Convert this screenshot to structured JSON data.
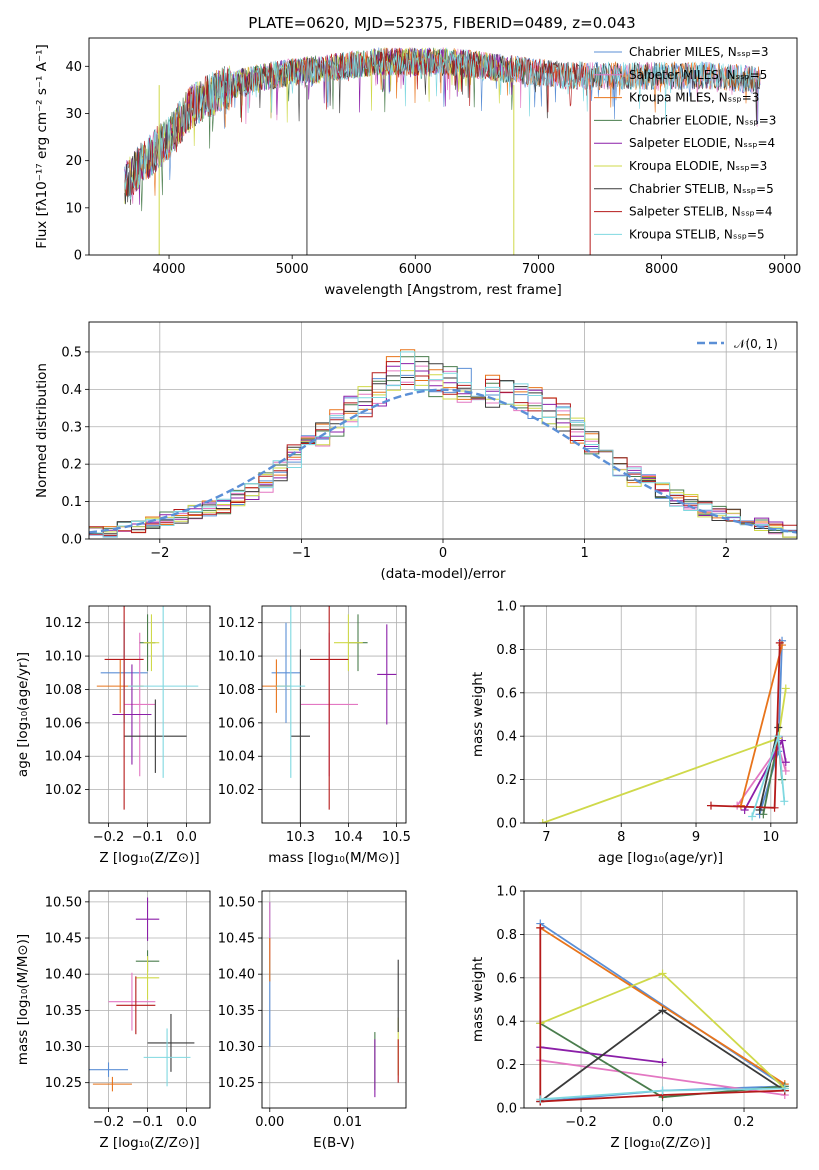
{
  "colors": [
    "#5b8fd6",
    "#e377c2",
    "#e8741b",
    "#4a7d4d",
    "#8b1fa8",
    "#cfd94a",
    "#3a3a3a",
    "#b51a1a",
    "#7fd8e0"
  ],
  "chart_data": [
    {
      "id": "spectrum",
      "type": "line",
      "title": "PLATE=0620, MJD=52375, FIBERID=0489, z=0.043",
      "xlabel": "wavelength [Angstrom, rest frame]",
      "ylabel": "Flux [fλ10⁻¹⁷ erg cm⁻² s⁻¹ A⁻¹]",
      "xlim": [
        3350,
        9100
      ],
      "ylim": [
        0,
        46
      ],
      "xticks": [
        4000,
        5000,
        6000,
        7000,
        8000,
        9000
      ],
      "yticks": [
        0,
        10,
        20,
        30,
        40
      ],
      "grid": false,
      "legend_position": "top-right",
      "series": [
        {
          "name": "Chabrier MILES, N_SSP=3",
          "x": [
            3640,
            3800,
            4000,
            4200,
            4500,
            4800,
            5100,
            5400,
            5700,
            6000,
            6300,
            6600,
            6900,
            7200,
            7500,
            7800,
            8100,
            8400,
            8800
          ],
          "y": [
            15,
            20,
            25,
            32,
            36,
            38,
            39,
            40,
            41,
            41,
            41,
            40,
            39,
            38,
            38,
            38,
            38,
            38,
            37
          ]
        },
        {
          "name": "Salpeter MILES, N_SSP=5",
          "x": [
            3640,
            3800,
            4000,
            4200,
            4500,
            4800,
            5100,
            5400,
            5700,
            6000,
            6300,
            6600,
            6900,
            7200,
            7500,
            7800,
            8100,
            8400,
            8800
          ],
          "y": [
            15,
            20,
            25,
            32,
            36,
            38,
            39,
            40,
            41,
            41,
            41,
            40,
            39,
            38,
            38,
            38,
            38,
            38,
            37
          ]
        },
        {
          "name": "Kroupa MILES, N_SSP=3",
          "x": [
            3640,
            3800,
            4000,
            4200,
            4500,
            4800,
            5100,
            5400,
            5700,
            6000,
            6300,
            6600,
            6900,
            7200,
            7500,
            7800,
            8100,
            8400,
            8800
          ],
          "y": [
            15,
            20,
            25,
            32,
            36,
            38,
            39,
            40,
            41,
            41,
            41,
            40,
            39,
            38,
            38,
            38,
            38,
            38,
            37
          ]
        },
        {
          "name": "Chabrier ELODIE, N_SSP=3",
          "x": [
            3640,
            3800,
            4000,
            4200,
            4500,
            4800,
            5100,
            5400,
            5700,
            6000,
            6300,
            6600,
            6900
          ],
          "y": [
            15,
            20,
            25,
            32,
            36,
            38,
            39,
            40,
            41,
            41,
            41,
            40,
            39
          ]
        },
        {
          "name": "Salpeter ELODIE, N_SSP=4",
          "x": [
            3640,
            3800,
            4000,
            4200,
            4500,
            4800,
            5100,
            5400,
            5700,
            6000,
            6300,
            6600,
            6800
          ],
          "y": [
            15,
            20,
            25,
            32,
            36,
            38,
            39,
            40,
            41,
            41,
            41,
            40,
            39
          ]
        },
        {
          "name": "Kroupa ELODIE, N_SSP=3",
          "x": [
            3640,
            3800,
            4000,
            4200,
            4500,
            4800,
            5100,
            5400,
            5700,
            6000,
            6300,
            6600,
            6800
          ],
          "y": [
            15,
            20,
            25,
            32,
            36,
            38,
            39,
            40,
            41,
            41,
            41,
            40,
            39
          ]
        },
        {
          "name": "Chabrier STELIB, N_SSP=5",
          "x": [
            3640,
            3800,
            4000,
            4200,
            4500,
            4800,
            5100,
            5400,
            5700,
            6000,
            6300,
            6600,
            6900,
            7200,
            7500,
            7800,
            8100,
            8400,
            8800
          ],
          "y": [
            15,
            20,
            25,
            32,
            36,
            38,
            39,
            40,
            41,
            41,
            41,
            40,
            39,
            38,
            38,
            38,
            38,
            38,
            37
          ]
        },
        {
          "name": "Salpeter STELIB, N_SSP=4",
          "x": [
            3640,
            3800,
            4000,
            4200,
            4500,
            4800,
            5100,
            5400,
            5700,
            6000,
            6300,
            6600,
            6900,
            7200,
            7400
          ],
          "y": [
            15,
            20,
            25,
            32,
            36,
            38,
            39,
            40,
            41,
            41,
            41,
            40,
            39,
            38,
            38
          ]
        },
        {
          "name": "Kroupa STELIB, N_SSP=5",
          "x": [
            3640,
            3800,
            4000,
            4200,
            4500,
            4800,
            5100,
            5400,
            5700,
            6000,
            6300,
            6600,
            6900,
            7200,
            7500,
            7800,
            8100,
            8400,
            8800
          ],
          "y": [
            15,
            20,
            25,
            32,
            36,
            38,
            39,
            40,
            41,
            41,
            41,
            40,
            39,
            38,
            38,
            38,
            38,
            38,
            37
          ]
        }
      ]
    },
    {
      "id": "residuals",
      "type": "line",
      "xlabel": "(data-model)/error",
      "ylabel": "Normed distribution",
      "xlim": [
        -2.5,
        2.5
      ],
      "ylim": [
        0,
        0.58
      ],
      "xticks": [
        -2,
        -1,
        0,
        1,
        2
      ],
      "yticks": [
        0.0,
        0.1,
        0.2,
        0.3,
        0.4,
        0.5
      ],
      "grid": true,
      "legend_position": "top-right",
      "legend_entries": [
        "𝒩(0, 1)"
      ],
      "bin_width": 0.1,
      "histogram_bins_start": -2.5,
      "reference_curve": {
        "name": "𝒩(0, 1)",
        "mean": 0,
        "sigma": 1
      },
      "histogram_profile": [
        0.02,
        0.02,
        0.03,
        0.035,
        0.04,
        0.055,
        0.06,
        0.07,
        0.08,
        0.09,
        0.11,
        0.13,
        0.15,
        0.18,
        0.22,
        0.25,
        0.28,
        0.31,
        0.34,
        0.37,
        0.4,
        0.44,
        0.46,
        0.44,
        0.43,
        0.42,
        0.41,
        0.41,
        0.4,
        0.39,
        0.38,
        0.36,
        0.34,
        0.32,
        0.29,
        0.26,
        0.23,
        0.2,
        0.17,
        0.15,
        0.13,
        0.11,
        0.1,
        0.08,
        0.07,
        0.06,
        0.05,
        0.04,
        0.03,
        0.02
      ]
    },
    {
      "id": "age_vs_Z",
      "type": "scatter",
      "xlabel": "Z [log₁₀(Z/Z⊙)]",
      "ylabel": "age  [log₁₀(age/yr)]",
      "xlim": [
        -0.25,
        0.06
      ],
      "ylim": [
        10.0,
        10.13
      ],
      "xticks": [
        -0.2,
        -0.1,
        0.0
      ],
      "yticks": [
        10.02,
        10.04,
        10.06,
        10.08,
        10.1,
        10.12
      ],
      "grid": true,
      "points": [
        {
          "x": -0.16,
          "xerr": 0.06,
          "y": 10.09,
          "yerr": 0.03
        },
        {
          "x": -0.12,
          "xerr": 0.04,
          "y": 10.071,
          "yerr": 0.043
        },
        {
          "x": -0.17,
          "xerr": 0.06,
          "y": 10.082,
          "yerr": 0.016
        },
        {
          "x": -0.1,
          "xerr": 0.02,
          "y": 10.108,
          "yerr": 0.017
        },
        {
          "x": -0.14,
          "xerr": 0.05,
          "y": 10.065,
          "yerr": 0.03
        },
        {
          "x": -0.09,
          "xerr": 0.02,
          "y": 10.108,
          "yerr": 0.017
        },
        {
          "x": -0.08,
          "xerr": 0.08,
          "y": 10.052,
          "yerr": 0.022
        },
        {
          "x": -0.16,
          "xerr": 0.05,
          "y": 10.098,
          "yerr": 0.09
        },
        {
          "x": -0.06,
          "xerr": 0.09,
          "y": 10.082,
          "yerr": 0.055
        }
      ]
    },
    {
      "id": "age_vs_mass",
      "type": "scatter",
      "xlabel": "mass [log₁₀(M/M⊙)]",
      "ylabel": "",
      "xlim": [
        10.22,
        10.52
      ],
      "ylim": [
        10.0,
        10.13
      ],
      "xticks": [
        10.3,
        10.4,
        10.5
      ],
      "yticks": [
        10.02,
        10.04,
        10.06,
        10.08,
        10.1,
        10.12
      ],
      "grid": true,
      "points": [
        {
          "x": 10.27,
          "xerr": 0.03,
          "y": 10.09,
          "yerr": 0.03
        },
        {
          "x": 10.36,
          "xerr": 0.06,
          "y": 10.071,
          "yerr": 0.043
        },
        {
          "x": 10.25,
          "xerr": 0.03,
          "y": 10.082,
          "yerr": 0.016
        },
        {
          "x": 10.42,
          "xerr": 0.02,
          "y": 10.108,
          "yerr": 0.017
        },
        {
          "x": 10.48,
          "xerr": 0.02,
          "y": 10.089,
          "yerr": 0.03
        },
        {
          "x": 10.4,
          "xerr": 0.03,
          "y": 10.108,
          "yerr": 0.017
        },
        {
          "x": 10.3,
          "xerr": 0.02,
          "y": 10.052,
          "yerr": 0.052
        },
        {
          "x": 10.36,
          "xerr": 0.04,
          "y": 10.098,
          "yerr": 0.09
        },
        {
          "x": 10.28,
          "xerr": 0.03,
          "y": 10.082,
          "yerr": 0.055
        }
      ]
    },
    {
      "id": "massweight_vs_age",
      "type": "line",
      "xlabel": "age  [log₁₀(age/yr)]",
      "ylabel": "mass weight",
      "xlim": [
        6.7,
        10.35
      ],
      "ylim": [
        0,
        1.0
      ],
      "xticks": [
        7,
        8,
        9,
        10
      ],
      "yticks": [
        0.0,
        0.2,
        0.4,
        0.6,
        0.8,
        1.0
      ],
      "grid": true,
      "series": [
        {
          "x": [
            9.85,
            10.1,
            10.15
          ],
          "y": [
            0.04,
            0.33,
            0.84
          ]
        },
        {
          "x": [
            9.55,
            10.1,
            10.2
          ],
          "y": [
            0.08,
            0.35,
            0.24
          ]
        },
        {
          "x": [
            9.6,
            10.15
          ],
          "y": [
            0.08,
            0.82
          ]
        },
        {
          "x": [
            9.9,
            10.1,
            10.15
          ],
          "y": [
            0.04,
            0.39,
            0.2
          ]
        },
        {
          "x": [
            9.65,
            10.15,
            10.2
          ],
          "y": [
            0.06,
            0.38,
            0.28
          ]
        },
        {
          "x": [
            6.95,
            10.1,
            10.2
          ],
          "y": [
            0.0,
            0.39,
            0.62
          ]
        },
        {
          "x": [
            9.85,
            10.1
          ],
          "y": [
            0.06,
            0.44
          ]
        },
        {
          "x": [
            9.2,
            10.05,
            10.12
          ],
          "y": [
            0.08,
            0.07,
            0.83
          ]
        },
        {
          "x": [
            9.75,
            10.1,
            10.18
          ],
          "y": [
            0.03,
            0.4,
            0.1
          ]
        }
      ]
    },
    {
      "id": "mass_vs_Z",
      "type": "scatter",
      "xlabel": "Z [log₁₀(Z/Z⊙)]",
      "ylabel": "mass [log₁₀(M/M⊙)]",
      "xlim": [
        -0.25,
        0.06
      ],
      "ylim": [
        10.215,
        10.515
      ],
      "xticks": [
        -0.2,
        -0.1,
        0.0
      ],
      "yticks": [
        10.25,
        10.3,
        10.35,
        10.4,
        10.45,
        10.5
      ],
      "grid": true,
      "points": [
        {
          "x": -0.2,
          "xerr": 0.05,
          "y": 10.268,
          "yerr": 0.01
        },
        {
          "x": -0.14,
          "xerr": 0.06,
          "y": 10.362,
          "yerr": 0.04
        },
        {
          "x": -0.19,
          "xerr": 0.05,
          "y": 10.248,
          "yerr": 0.01
        },
        {
          "x": -0.1,
          "xerr": 0.03,
          "y": 10.418,
          "yerr": 0.015
        },
        {
          "x": -0.1,
          "xerr": 0.03,
          "y": 10.476,
          "yerr": 0.03
        },
        {
          "x": -0.1,
          "xerr": 0.03,
          "y": 10.395,
          "yerr": 0.03
        },
        {
          "x": -0.04,
          "xerr": 0.06,
          "y": 10.305,
          "yerr": 0.04
        },
        {
          "x": -0.13,
          "xerr": 0.05,
          "y": 10.357,
          "yerr": 0.04
        },
        {
          "x": -0.05,
          "xerr": 0.06,
          "y": 10.285,
          "yerr": 0.04
        }
      ]
    },
    {
      "id": "mass_vs_ebv",
      "type": "scatter",
      "xlabel": "E(B-V)",
      "ylabel": "",
      "xlim": [
        -0.001,
        0.0175
      ],
      "ylim": [
        10.215,
        10.515
      ],
      "xticks": [
        0.0,
        0.01
      ],
      "yticks": [
        10.25,
        10.3,
        10.35,
        10.4,
        10.45,
        10.5
      ],
      "grid": true,
      "points": [
        {
          "x": 0.0,
          "y": 10.4,
          "yerr": 0.1
        },
        {
          "x": 0.0,
          "y": 10.46,
          "yerr": 0.04
        },
        {
          "x": 0.0,
          "y": 10.42,
          "yerr": 0.03
        },
        {
          "x": 0.0135,
          "y": 10.28,
          "yerr": 0.04
        },
        {
          "x": 0.0135,
          "y": 10.27,
          "yerr": 0.04
        },
        {
          "x": 0.0165,
          "y": 10.3,
          "yerr": 0.04
        },
        {
          "x": 0.0165,
          "y": 10.37,
          "yerr": 0.05
        },
        {
          "x": 0.0165,
          "y": 10.28,
          "yerr": 0.03
        }
      ]
    },
    {
      "id": "massweight_vs_Z",
      "type": "line",
      "xlabel": "Z [log₁₀(Z/Z⊙)]",
      "ylabel": "mass weight",
      "xlim": [
        -0.34,
        0.33
      ],
      "ylim": [
        0,
        1.0
      ],
      "xticks": [
        -0.2,
        0.0,
        0.2
      ],
      "yticks": [
        0.0,
        0.2,
        0.4,
        0.6,
        0.8,
        1.0
      ],
      "grid": true,
      "series": [
        {
          "x": [
            -0.3,
            0.3,
            0.0,
            -0.3
          ],
          "y": [
            0.85,
            0.1,
            0.08,
            0.03
          ]
        },
        {
          "x": [
            -0.3,
            0.3
          ],
          "y": [
            0.22,
            0.06
          ]
        },
        {
          "x": [
            -0.3,
            0.3
          ],
          "y": [
            0.83,
            0.11
          ]
        },
        {
          "x": [
            -0.3,
            0.0,
            0.3
          ],
          "y": [
            0.39,
            0.05,
            0.1
          ]
        },
        {
          "x": [
            -0.3,
            0.0
          ],
          "y": [
            0.28,
            0.21
          ]
        },
        {
          "x": [
            -0.3,
            0.0,
            0.3
          ],
          "y": [
            0.39,
            0.62,
            0.09
          ]
        },
        {
          "x": [
            -0.3,
            0.0,
            0.3
          ],
          "y": [
            0.03,
            0.45,
            0.08
          ]
        },
        {
          "x": [
            -0.3,
            -0.3,
            0.0,
            0.3
          ],
          "y": [
            0.83,
            0.03,
            0.06,
            0.08
          ]
        },
        {
          "x": [
            -0.3,
            0.0,
            0.3
          ],
          "y": [
            0.04,
            0.08,
            0.09
          ]
        }
      ]
    }
  ]
}
